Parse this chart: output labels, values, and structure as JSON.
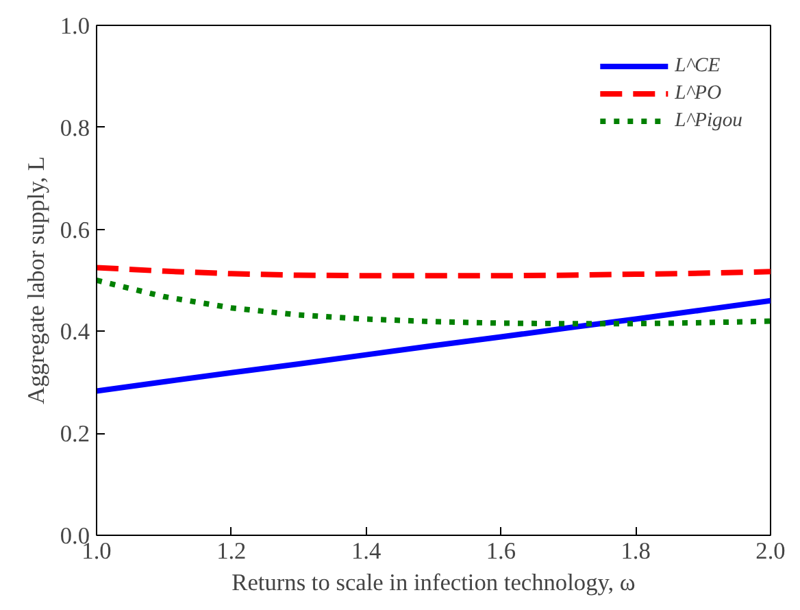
{
  "chart_data": {
    "type": "line",
    "xlabel": "Returns to scale in infection technology, ω",
    "ylabel": "Aggregate labor supply, L",
    "x": [
      1.0,
      1.1,
      1.2,
      1.3,
      1.4,
      1.5,
      1.6,
      1.7,
      1.8,
      1.9,
      2.0
    ],
    "series": [
      {
        "name": "L^CE",
        "color": "#0000ff",
        "line_style": "solid",
        "values": [
          0.283,
          0.301,
          0.319,
          0.336,
          0.354,
          0.372,
          0.389,
          0.407,
          0.424,
          0.442,
          0.46
        ]
      },
      {
        "name": "L^PO",
        "color": "#ff0000",
        "line_style": "dashed",
        "values": [
          0.525,
          0.518,
          0.513,
          0.51,
          0.509,
          0.509,
          0.509,
          0.51,
          0.512,
          0.514,
          0.517
        ]
      },
      {
        "name": "L^Pigou",
        "color": "#008000",
        "line_style": "dotted",
        "values": [
          0.5,
          0.468,
          0.446,
          0.432,
          0.424,
          0.419,
          0.416,
          0.415,
          0.415,
          0.417,
          0.42
        ]
      }
    ],
    "xlim": [
      1.0,
      2.0
    ],
    "xticks": [
      {
        "value": 1,
        "label": "1.0"
      },
      1.2,
      1.4,
      1.6,
      1.8,
      {
        "value": 2,
        "label": "2.0"
      }
    ],
    "ylim": [
      0.0,
      1.0
    ],
    "yticks": [
      {
        "value": 0,
        "label": "0.0"
      },
      0.2,
      0.4,
      0.6,
      0.8,
      {
        "value": 1,
        "label": "1.0"
      }
    ],
    "grid": false,
    "legend": "top right",
    "marker": "none"
  }
}
